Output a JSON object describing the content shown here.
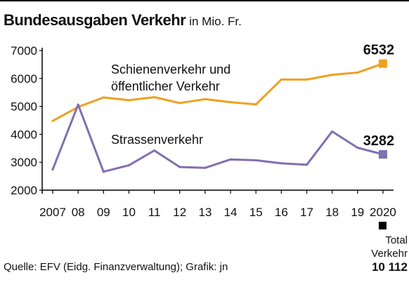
{
  "title": "Bundesausgaben Verkehr",
  "subtitle": "in Mio. Fr.",
  "source": "Quelle:  EFV (Eidg. Finanzverwaltung); Grafik: jn",
  "colors": {
    "rail": "#f0a020",
    "road": "#8070b0",
    "text": "#111111",
    "grid": "#bbbbbb"
  },
  "chart_data": {
    "type": "line",
    "x_labels": [
      "2007",
      "08",
      "09",
      "10",
      "11",
      "12",
      "13",
      "14",
      "15",
      "16",
      "17",
      "18",
      "19",
      "2020"
    ],
    "ylim": [
      2000,
      7000
    ],
    "y_ticks": [
      2000,
      3000,
      4000,
      5000,
      6000,
      7000
    ],
    "grid": false,
    "series": [
      {
        "key": "rail",
        "name": "Schienenverkehr und öffentlicher Verkehr",
        "name_lines": [
          "Schienenverkehr und",
          "öffentlicher Verkehr"
        ],
        "values": [
          4480,
          4980,
          5320,
          5220,
          5330,
          5120,
          5260,
          5150,
          5070,
          5960,
          5960,
          6130,
          6210,
          6532
        ],
        "end_label": "6532"
      },
      {
        "key": "road",
        "name": "Strassenverkehr",
        "name_lines": [
          "Strassenverkehr"
        ],
        "values": [
          2740,
          5060,
          2660,
          2890,
          3420,
          2830,
          2800,
          3100,
          3070,
          2960,
          2910,
          4100,
          3520,
          3282
        ],
        "end_label": "3282"
      }
    ],
    "total": {
      "lines": [
        "Total",
        "Verkehr"
      ],
      "value": "10 112"
    }
  }
}
